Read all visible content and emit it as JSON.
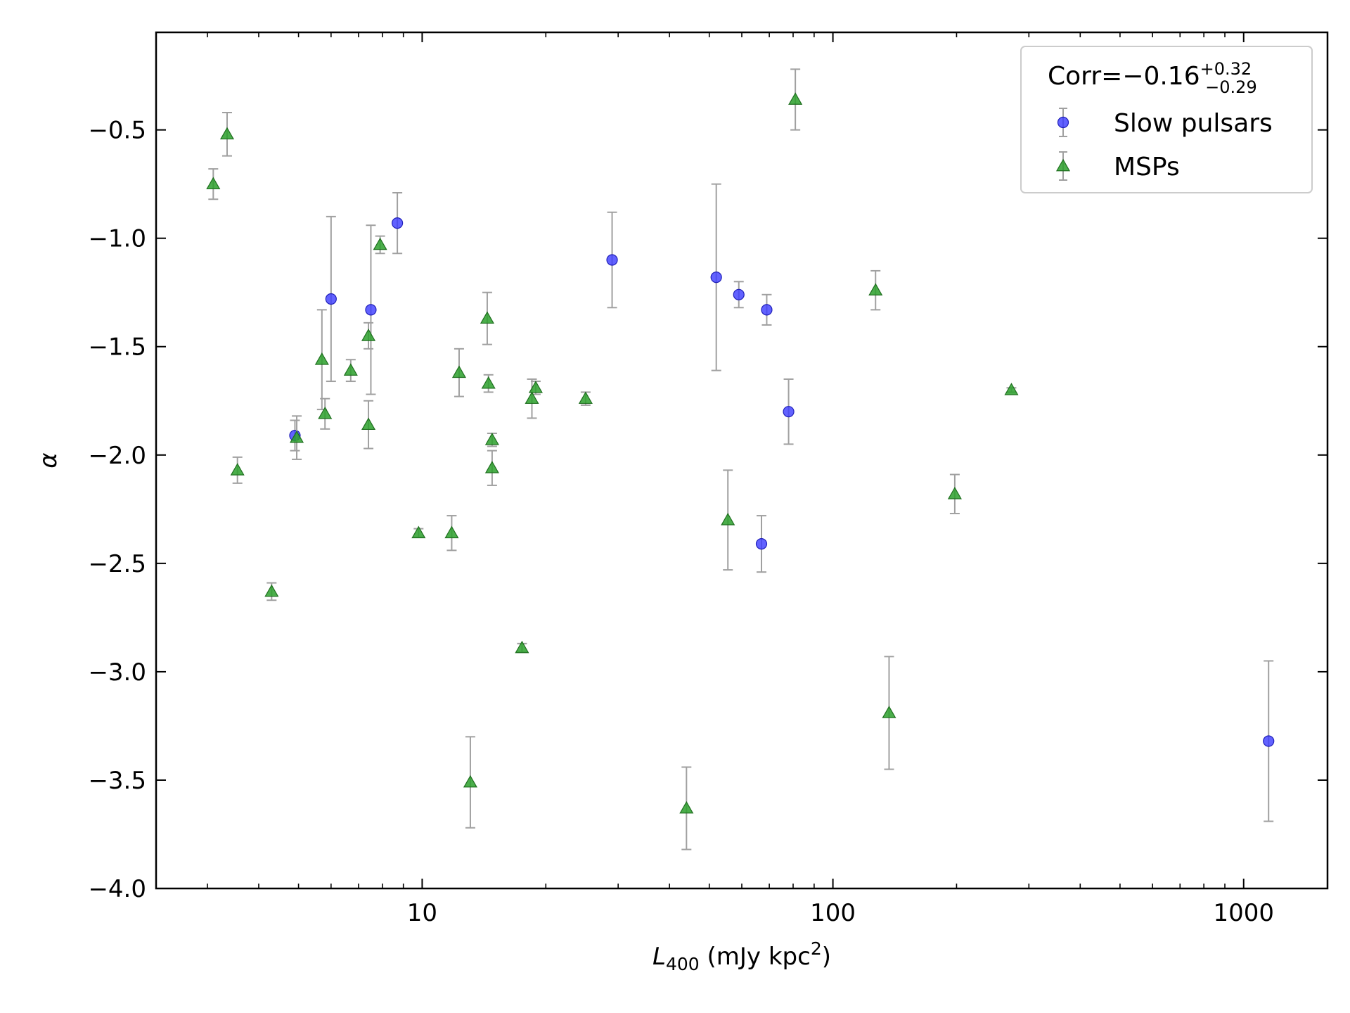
{
  "chart_data": {
    "type": "scatter",
    "x_scale": "log",
    "xlim": [
      2.25,
      1600
    ],
    "ylim": [
      -4.0,
      -0.05
    ],
    "x_ticks": [
      10,
      100,
      1000
    ],
    "x_tick_labels": [
      "10",
      "100",
      "1000"
    ],
    "y_ticks": [
      -4.0,
      -3.5,
      -3.0,
      -2.5,
      -2.0,
      -1.5,
      -1.0,
      -0.5
    ],
    "y_tick_labels": [
      "−4.0",
      "−3.5",
      "−3.0",
      "−2.5",
      "−2.0",
      "−1.5",
      "−1.0",
      "−0.5"
    ],
    "xlabel_var": "L",
    "xlabel_sub": "400",
    "xlabel_unit": " (mJy kpc",
    "xlabel_sup": "2",
    "xlabel_close": ")",
    "ylabel": "α",
    "grid": false,
    "legend_position": "top-right",
    "legend_title": {
      "prefix": "Corr=−0.16",
      "sup": "+0.32",
      "sub": "−0.29"
    },
    "errorbar_color": "#a0a0a0",
    "series": [
      {
        "name": "Slow pulsars",
        "marker": "circle",
        "color": "#3b3bff",
        "edge_color": "#1f1fb8",
        "points": [
          {
            "x": 4.9,
            "y": -1.91,
            "err_lo": 0.07,
            "err_hi": 0.07
          },
          {
            "x": 6.0,
            "y": -1.28,
            "err_lo": 0.38,
            "err_hi": 0.38
          },
          {
            "x": 7.5,
            "y": -1.33,
            "err_lo": 0.39,
            "err_hi": 0.39
          },
          {
            "x": 8.7,
            "y": -0.93,
            "err_lo": 0.14,
            "err_hi": 0.14
          },
          {
            "x": 29,
            "y": -1.1,
            "err_lo": 0.22,
            "err_hi": 0.22
          },
          {
            "x": 52,
            "y": -1.18,
            "err_lo": 0.43,
            "err_hi": 0.43
          },
          {
            "x": 59,
            "y": -1.26,
            "err_lo": 0.06,
            "err_hi": 0.06
          },
          {
            "x": 69,
            "y": -1.33,
            "err_lo": 0.07,
            "err_hi": 0.07
          },
          {
            "x": 78,
            "y": -1.8,
            "err_lo": 0.15,
            "err_hi": 0.15
          },
          {
            "x": 67,
            "y": -2.41,
            "err_lo": 0.13,
            "err_hi": 0.13
          },
          {
            "x": 1150,
            "y": -3.32,
            "err_lo": 0.37,
            "err_hi": 0.37
          }
        ]
      },
      {
        "name": "MSPs",
        "marker": "triangle",
        "color": "#2ca02c",
        "edge_color": "#1e6e1e",
        "points": [
          {
            "x": 3.1,
            "y": -0.75,
            "err_lo": 0.07,
            "err_hi": 0.07
          },
          {
            "x": 3.35,
            "y": -0.52,
            "err_lo": 0.1,
            "err_hi": 0.1
          },
          {
            "x": 3.55,
            "y": -2.07,
            "err_lo": 0.06,
            "err_hi": 0.06
          },
          {
            "x": 4.3,
            "y": -2.63,
            "err_lo": 0.04,
            "err_hi": 0.04
          },
          {
            "x": 4.95,
            "y": -1.92,
            "err_lo": 0.1,
            "err_hi": 0.1
          },
          {
            "x": 5.7,
            "y": -1.56,
            "err_lo": 0.23,
            "err_hi": 0.23
          },
          {
            "x": 5.8,
            "y": -1.81,
            "err_lo": 0.07,
            "err_hi": 0.07
          },
          {
            "x": 6.7,
            "y": -1.61,
            "err_lo": 0.05,
            "err_hi": 0.05
          },
          {
            "x": 7.4,
            "y": -1.45,
            "err_lo": 0.06,
            "err_hi": 0.06
          },
          {
            "x": 7.4,
            "y": -1.86,
            "err_lo": 0.11,
            "err_hi": 0.11
          },
          {
            "x": 7.9,
            "y": -1.03,
            "err_lo": 0.04,
            "err_hi": 0.04
          },
          {
            "x": 9.8,
            "y": -2.36,
            "err_lo": 0.02,
            "err_hi": 0.02
          },
          {
            "x": 11.8,
            "y": -2.36,
            "err_lo": 0.08,
            "err_hi": 0.08
          },
          {
            "x": 12.3,
            "y": -1.62,
            "err_lo": 0.11,
            "err_hi": 0.11
          },
          {
            "x": 13.1,
            "y": -3.51,
            "err_lo": 0.21,
            "err_hi": 0.21
          },
          {
            "x": 14.4,
            "y": -1.37,
            "err_lo": 0.12,
            "err_hi": 0.12
          },
          {
            "x": 14.5,
            "y": -1.67,
            "err_lo": 0.04,
            "err_hi": 0.04
          },
          {
            "x": 14.8,
            "y": -1.93,
            "err_lo": 0.03,
            "err_hi": 0.03
          },
          {
            "x": 14.8,
            "y": -2.06,
            "err_lo": 0.08,
            "err_hi": 0.08
          },
          {
            "x": 17.5,
            "y": -2.89,
            "err_lo": 0.02,
            "err_hi": 0.02
          },
          {
            "x": 18.5,
            "y": -1.74,
            "err_lo": 0.09,
            "err_hi": 0.09
          },
          {
            "x": 18.9,
            "y": -1.69,
            "err_lo": 0.03,
            "err_hi": 0.03
          },
          {
            "x": 25,
            "y": -1.74,
            "err_lo": 0.03,
            "err_hi": 0.03
          },
          {
            "x": 44,
            "y": -3.63,
            "err_lo": 0.19,
            "err_hi": 0.19
          },
          {
            "x": 55.5,
            "y": -2.3,
            "err_lo": 0.23,
            "err_hi": 0.23
          },
          {
            "x": 81,
            "y": -0.36,
            "err_lo": 0.14,
            "err_hi": 0.14
          },
          {
            "x": 127,
            "y": -1.24,
            "err_lo": 0.09,
            "err_hi": 0.09
          },
          {
            "x": 137,
            "y": -3.19,
            "err_lo": 0.26,
            "err_hi": 0.26
          },
          {
            "x": 198,
            "y": -2.18,
            "err_lo": 0.09,
            "err_hi": 0.09
          },
          {
            "x": 272,
            "y": -1.7,
            "err_lo": 0.01,
            "err_hi": 0.01
          }
        ]
      }
    ]
  }
}
